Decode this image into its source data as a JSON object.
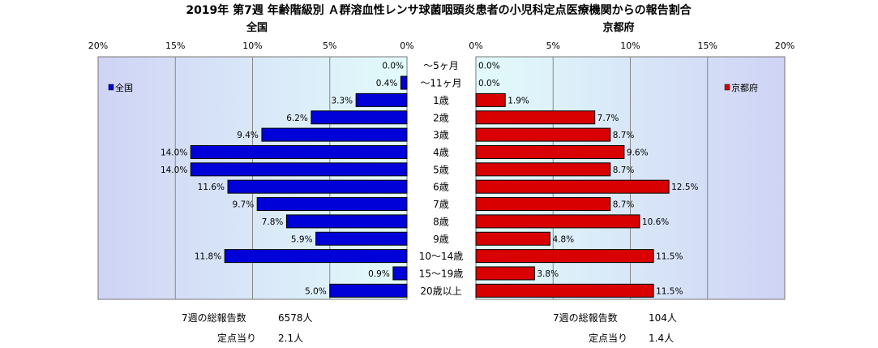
{
  "title": "2019年 第7週 年齢階級別 Ａ群溶血性レンサ球菌咽頭炎患者の小児科定点医療機関からの報告割合",
  "chart_data": {
    "type": "bar",
    "orientation": "horizontal-butterfly",
    "categories": [
      "～5ヶ月",
      "～11ヶ月",
      "1歳",
      "2歳",
      "3歳",
      "4歳",
      "5歳",
      "6歳",
      "7歳",
      "8歳",
      "9歳",
      "10～14歳",
      "15～19歳",
      "20歳以上"
    ],
    "xlim": [
      0,
      20
    ],
    "xticks": [
      "0%",
      "5%",
      "10%",
      "15%",
      "20%"
    ],
    "grid": true,
    "legend_placement": "inside-top",
    "series": [
      {
        "name": "全国",
        "panel_title": "全国",
        "color": "#0000d8",
        "values": [
          0.0,
          0.4,
          3.3,
          6.2,
          9.4,
          14.0,
          14.0,
          11.6,
          9.7,
          7.8,
          5.9,
          11.8,
          0.9,
          5.0
        ],
        "labels": [
          "0.0%",
          "0.4%",
          "3.3%",
          "6.2%",
          "9.4%",
          "14.0%",
          "14.0%",
          "11.6%",
          "9.7%",
          "7.8%",
          "5.9%",
          "11.8%",
          "0.9%",
          "5.0%"
        ]
      },
      {
        "name": "京都府",
        "panel_title": "京都府",
        "color": "#d80000",
        "values": [
          0.0,
          0.0,
          1.9,
          7.7,
          8.7,
          9.6,
          8.7,
          12.5,
          8.7,
          10.6,
          4.8,
          11.5,
          3.8,
          11.5
        ],
        "labels": [
          "0.0%",
          "0.0%",
          "1.9%",
          "7.7%",
          "8.7%",
          "9.6%",
          "8.7%",
          "12.5%",
          "8.7%",
          "10.6%",
          "4.8%",
          "11.5%",
          "3.8%",
          "11.5%"
        ]
      }
    ]
  },
  "footer": {
    "national": {
      "total_label": "7週の総報告数",
      "total_value": "6578人",
      "per_label": "定点当り",
      "per_value": "2.1人"
    },
    "kyoto": {
      "total_label": "7週の総報告数",
      "total_value": "104人",
      "per_label": "定点当り",
      "per_value": "1.4人"
    }
  }
}
